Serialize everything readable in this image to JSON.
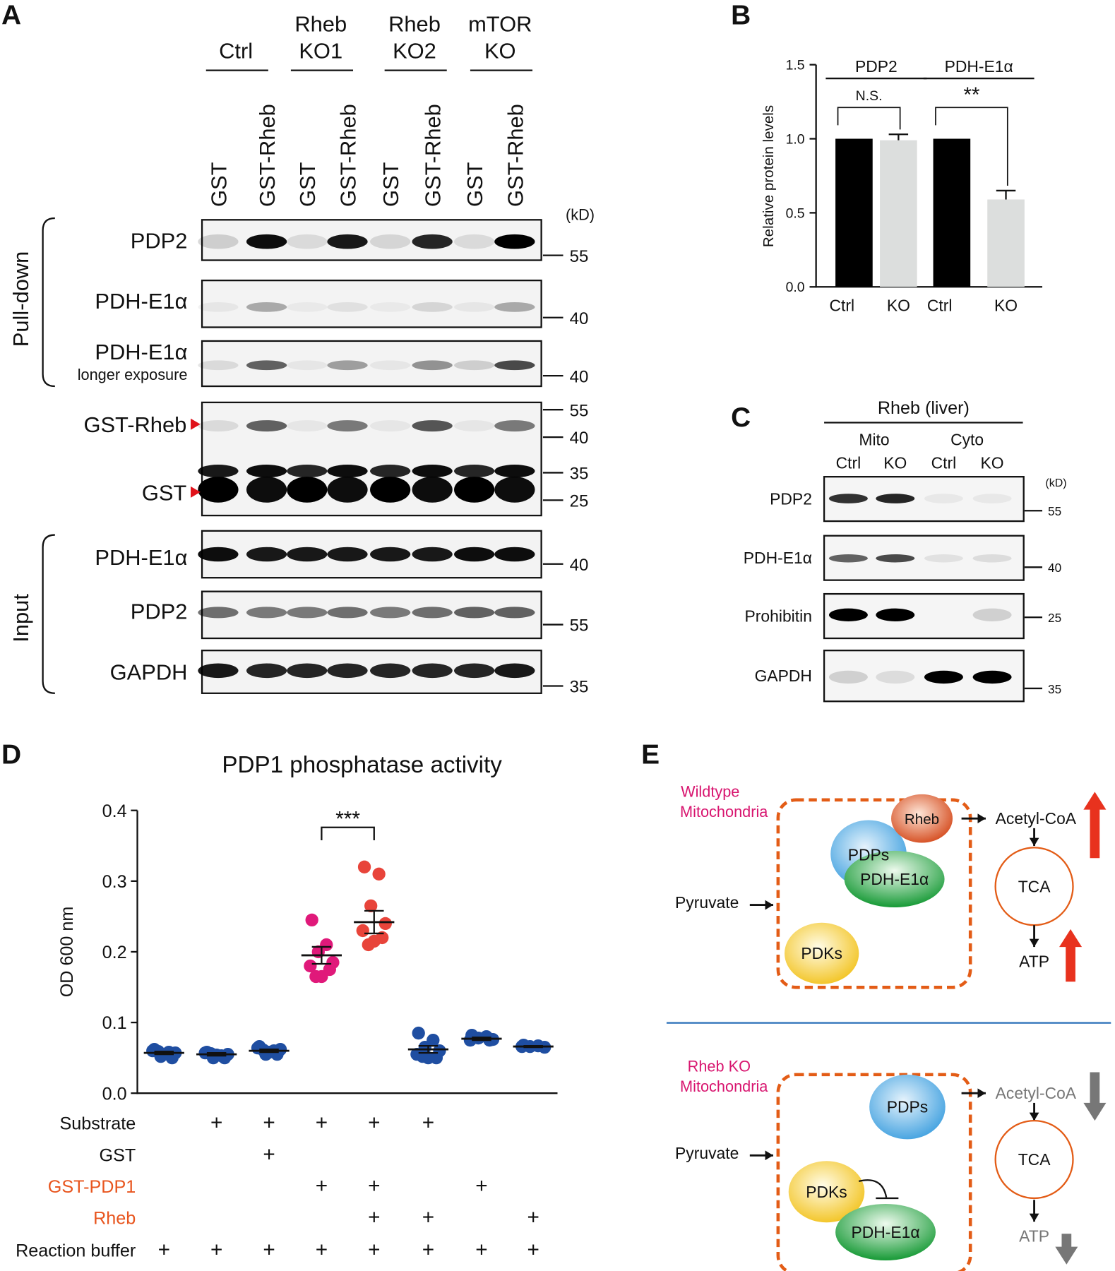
{
  "panel_a": {
    "label": "A",
    "groups": [
      [
        "Ctrl"
      ],
      [
        "Rheb",
        "KO1"
      ],
      [
        "Rheb",
        "KO2"
      ],
      [
        "mTOR",
        "KO"
      ]
    ],
    "lanes": [
      "GST",
      "GST-Rheb",
      "GST",
      "GST-Rheb",
      "GST",
      "GST-Rheb",
      "GST",
      "GST-Rheb"
    ],
    "unit": "(kD)",
    "sections": [
      "Pull-down",
      "Input"
    ],
    "blots": [
      {
        "labels": [
          "PDP2"
        ],
        "markers": [
          55
        ]
      },
      {
        "labels": [
          "PDH-E1α"
        ],
        "markers": [
          40
        ]
      },
      {
        "labels": [
          "PDH-E1α"
        ],
        "sublabel": "longer exposure",
        "markers": [
          40
        ]
      },
      {
        "labels": [
          "GST-Rheb",
          "GST"
        ],
        "markers": [
          55,
          40,
          35,
          25
        ]
      },
      {
        "labels": [
          "PDH-E1α"
        ],
        "markers": [
          40
        ]
      },
      {
        "labels": [
          "PDP2"
        ],
        "markers": [
          55
        ]
      },
      {
        "labels": [
          "GAPDH"
        ],
        "markers": [
          35
        ]
      }
    ]
  },
  "panel_c": {
    "label": "C",
    "title": "Rheb (liver)",
    "groups": [
      "Mito",
      "Cyto"
    ],
    "lanes": [
      "Ctrl",
      "KO",
      "Ctrl",
      "KO"
    ],
    "unit": "(kD)",
    "blots": [
      {
        "label": "PDP2",
        "markers": [
          55
        ]
      },
      {
        "label": "PDH-E1α",
        "markers": [
          40
        ]
      },
      {
        "label": "Prohibitin",
        "markers": [
          25
        ]
      },
      {
        "label": "GAPDH",
        "markers": [
          35
        ]
      }
    ]
  },
  "chart_data": [
    {
      "type": "bar",
      "label": "B",
      "y_label": "Relative protein levels",
      "categories": [
        "Ctrl",
        "KO",
        "Ctrl",
        "KO"
      ],
      "values": [
        1,
        0.99,
        1,
        0.59
      ],
      "errors": [
        0,
        0.04,
        0,
        0.06
      ],
      "colors": [
        "#000000",
        "#dcdedd",
        "#000000",
        "#dcdedd"
      ],
      "groups": [
        "PDP2",
        "PDH-E1α"
      ],
      "significance": [
        "N.S.",
        "**"
      ],
      "ylim": [
        0,
        1.5
      ],
      "yticks": [
        {
          "value": 0,
          "label": "0.0"
        },
        0.5,
        {
          "value": 1,
          "label": "1.0"
        },
        1.5
      ]
    },
    {
      "type": "scatter",
      "label": "D",
      "title": "PDP1 phosphatase activity",
      "y_label": "OD 600 nm",
      "ylim": [
        0,
        0.4
      ],
      "yticks": [
        {
          "value": 0,
          "label": "0.0"
        },
        0.1,
        0.2,
        0.3,
        0.4
      ],
      "significance": "***",
      "groups": [
        {
          "color": "#1f4ea1",
          "values": [
            0.062,
            0.058,
            0.052,
            0.057,
            0.06,
            0.05,
            0.055,
            0.059
          ],
          "mean": 0.057,
          "sem": 0.002
        },
        {
          "color": "#1f4ea1",
          "values": [
            0.058,
            0.053,
            0.05,
            0.055,
            0.057,
            0.05,
            0.054,
            0.056
          ],
          "mean": 0.055,
          "sem": 0.002
        },
        {
          "color": "#1f4ea1",
          "values": [
            0.066,
            0.06,
            0.055,
            0.062,
            0.064,
            0.055,
            0.058,
            0.061
          ],
          "mean": 0.06,
          "sem": 0.002
        },
        {
          "color": "#e0197a",
          "values": [
            0.245,
            0.21,
            0.2,
            0.185,
            0.18,
            0.175,
            0.165,
            0.165
          ],
          "mean": 0.195,
          "sem": 0.012
        },
        {
          "color": "#e8443a",
          "values": [
            0.32,
            0.31,
            0.265,
            0.24,
            0.23,
            0.22,
            0.215,
            0.21
          ],
          "mean": 0.242,
          "sem": 0.016
        },
        {
          "color": "#1f4ea1",
          "values": [
            0.085,
            0.075,
            0.065,
            0.06,
            0.055,
            0.05,
            0.05,
            0.052
          ],
          "mean": 0.062,
          "sem": 0.005
        },
        {
          "color": "#1f4ea1",
          "values": [
            0.082,
            0.08,
            0.078,
            0.076,
            0.075,
            0.075
          ],
          "mean": 0.077,
          "sem": 0.002
        },
        {
          "color": "#1f4ea1",
          "values": [
            0.068,
            0.067,
            0.066,
            0.065,
            0.066
          ],
          "mean": 0.066,
          "sem": 0.001
        }
      ],
      "conditions": [
        {
          "name": "Substrate",
          "color": "#111111",
          "marks": [
            null,
            "+",
            "+",
            "+",
            "+",
            "+",
            null,
            null
          ]
        },
        {
          "name": "GST",
          "color": "#111111",
          "marks": [
            null,
            null,
            "+",
            null,
            null,
            null,
            null,
            null
          ]
        },
        {
          "name": "GST-PDP1",
          "color": "#e8551e",
          "marks": [
            null,
            null,
            null,
            "+",
            "+",
            null,
            "+",
            null
          ]
        },
        {
          "name": "Rheb",
          "color": "#e8551e",
          "marks": [
            null,
            null,
            null,
            null,
            "+",
            "+",
            null,
            "+"
          ]
        },
        {
          "name": "Reaction buffer",
          "color": "#111111",
          "marks": [
            "+",
            "+",
            "+",
            "+",
            "+",
            "+",
            "+",
            "+"
          ]
        }
      ]
    }
  ],
  "panel_e": {
    "label": "E",
    "wildtype": {
      "title": [
        "Wildtype",
        "Mitochondria"
      ],
      "rheb": "Rheb",
      "pdps": "PDPs",
      "pdh": "PDH-E1α",
      "pdks": "PDKs",
      "pyruvate": "Pyruvate",
      "acetyl": "Acetyl-CoA",
      "tca": "TCA",
      "atp": "ATP"
    },
    "knockout": {
      "title": [
        "Rheb KO",
        "Mitochondria"
      ],
      "pdps": "PDPs",
      "pdh": "PDH-E1α",
      "pdks": "PDKs",
      "pyruvate": "Pyruvate",
      "acetyl": "Acetyl-CoA",
      "tca": "TCA",
      "atp": "ATP"
    }
  }
}
